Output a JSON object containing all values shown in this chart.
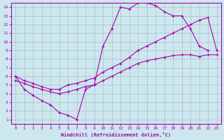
{
  "xlabel": "Windchill (Refroidissement éolien,°C)",
  "bg_color": "#cce8ee",
  "grid_color": "#aabbcc",
  "line_color": "#aa00aa",
  "xlim": [
    -0.5,
    23.5
  ],
  "ylim": [
    0.5,
    14.5
  ],
  "xticks": [
    0,
    1,
    2,
    3,
    4,
    5,
    6,
    7,
    8,
    9,
    10,
    11,
    12,
    13,
    14,
    15,
    16,
    17,
    18,
    19,
    20,
    21,
    22,
    23
  ],
  "yticks": [
    1,
    2,
    3,
    4,
    5,
    6,
    7,
    8,
    9,
    10,
    11,
    12,
    13,
    14
  ],
  "line1_x": [
    0,
    1,
    2,
    3,
    4,
    5,
    6,
    7,
    8,
    9,
    10,
    11,
    12,
    13,
    14,
    15,
    16,
    17,
    18,
    19,
    20,
    21,
    22
  ],
  "line1_y": [
    6.0,
    4.5,
    3.8,
    3.2,
    2.7,
    1.8,
    1.5,
    1.0,
    4.5,
    5.0,
    9.5,
    11.5,
    14.0,
    13.8,
    14.5,
    14.5,
    14.2,
    13.5,
    13.0,
    13.0,
    11.5,
    9.5,
    9.0
  ],
  "line2_x": [
    0,
    1,
    2,
    3,
    4,
    5,
    6,
    7,
    8,
    9,
    10,
    11,
    12,
    13,
    14,
    15,
    16,
    17,
    18,
    19,
    20,
    21,
    22,
    23
  ],
  "line2_y": [
    6.0,
    5.5,
    5.2,
    4.8,
    4.5,
    4.5,
    5.0,
    5.2,
    5.5,
    5.8,
    6.5,
    7.0,
    7.5,
    8.2,
    9.0,
    9.5,
    10.0,
    10.5,
    11.0,
    11.5,
    12.0,
    12.5,
    12.8,
    9.0
  ],
  "line3_x": [
    0,
    1,
    2,
    3,
    4,
    5,
    6,
    7,
    8,
    9,
    10,
    11,
    12,
    13,
    14,
    15,
    16,
    17,
    18,
    19,
    20,
    21,
    22,
    23
  ],
  "line3_y": [
    5.5,
    5.2,
    4.8,
    4.5,
    4.2,
    4.0,
    4.2,
    4.5,
    4.8,
    5.0,
    5.5,
    6.0,
    6.5,
    7.0,
    7.5,
    7.8,
    8.0,
    8.2,
    8.4,
    8.5,
    8.5,
    8.3,
    8.5,
    8.5
  ]
}
